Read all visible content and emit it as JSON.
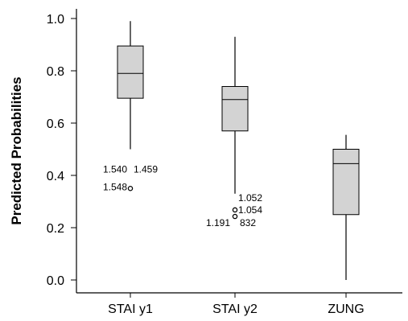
{
  "chart_data": {
    "type": "box",
    "title": "",
    "ylabel": "Predicted Probabilities",
    "xlabel": "",
    "ylim": [
      0.0,
      1.0
    ],
    "yticks": [
      {
        "value": 0.0,
        "label": "0.0"
      },
      {
        "value": 0.2,
        "label": "0.2"
      },
      {
        "value": 0.4,
        "label": "0.4"
      },
      {
        "value": 0.6,
        "label": "0.6"
      },
      {
        "value": 0.8,
        "label": "0.8"
      },
      {
        "value": 1.0,
        "label": "1.0"
      }
    ],
    "categories": [
      "STAI y1",
      "STAI y2",
      "ZUNG"
    ],
    "box_color": "#d3d3d3",
    "boxes": [
      {
        "category": "STAI y1",
        "whisker_low": 0.5,
        "q1": 0.695,
        "median": 0.79,
        "q3": 0.895,
        "whisker_high": 0.99,
        "outliers": [
          {
            "value": 0.35,
            "labels": [
              "1.540",
              "1.459",
              "1.548"
            ]
          }
        ]
      },
      {
        "category": "STAI y2",
        "whisker_low": 0.33,
        "q1": 0.57,
        "median": 0.69,
        "q3": 0.74,
        "whisker_high": 0.93,
        "outliers": [
          {
            "value": 0.268,
            "labels": [
              "1.052",
              "1.054"
            ]
          },
          {
            "value": 0.243,
            "labels": [
              "1.191",
              "832"
            ]
          }
        ]
      },
      {
        "category": "ZUNG",
        "whisker_low": 0.0,
        "q1": 0.25,
        "median": 0.445,
        "q3": 0.5,
        "whisker_high": 0.555,
        "outliers": []
      }
    ]
  }
}
